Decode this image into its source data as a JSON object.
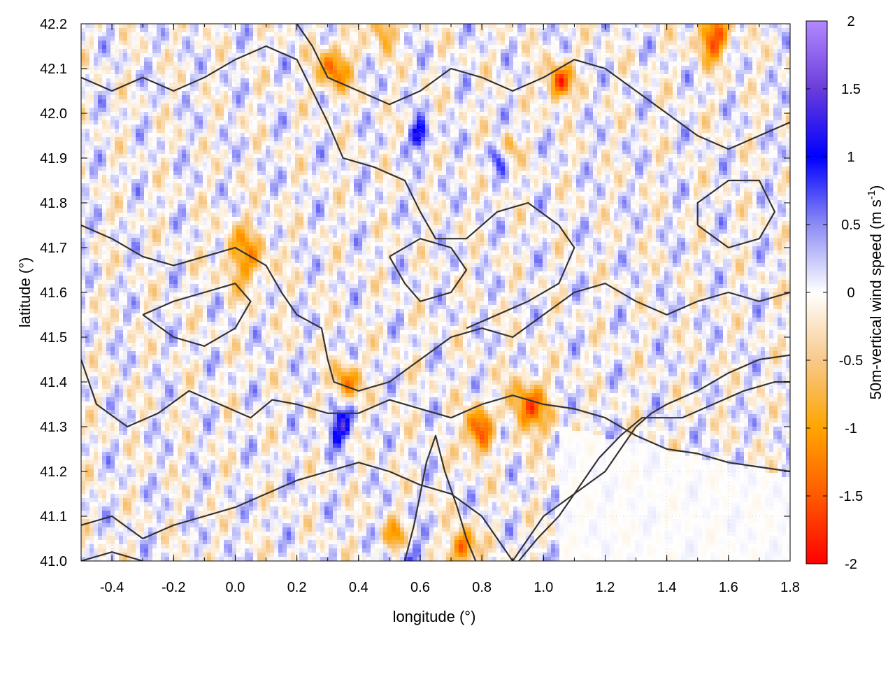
{
  "chart_data": {
    "type": "heatmap",
    "xlabel": "longitude (°)",
    "ylabel": "latitude (°)",
    "colorbar_label": "50m-vertical wind speed (m s",
    "colorbar_label_sup": "-1",
    "colorbar_label_close": ")",
    "xlim": [
      -0.5,
      1.8
    ],
    "ylim": [
      41.0,
      42.2
    ],
    "x_ticks": [
      -0.4,
      -0.2,
      0.0,
      0.2,
      0.4,
      0.6,
      0.8,
      1.0,
      1.2,
      1.4,
      1.6,
      1.8
    ],
    "x_tick_labels": [
      "-0.4",
      "-0.2",
      "0.0",
      "0.2",
      "0.4",
      "0.6",
      "0.8",
      "1.0",
      "1.2",
      "1.4",
      "1.6",
      "1.8"
    ],
    "y_ticks": [
      41.0,
      41.1,
      41.2,
      41.3,
      41.4,
      41.5,
      41.6,
      41.7,
      41.8,
      41.9,
      42.0,
      42.1,
      42.2
    ],
    "y_tick_labels": [
      "41.0",
      "41.1",
      "41.2",
      "41.3",
      "41.4",
      "41.5",
      "41.6",
      "41.7",
      "41.8",
      "41.9",
      "42.0",
      "42.1",
      "42.2"
    ],
    "colorbar_range": [
      -2,
      2
    ],
    "colorbar_ticks": [
      2,
      1.5,
      1,
      0.5,
      0,
      -0.5,
      -1,
      -1.5,
      -2
    ],
    "colorbar_tick_labels": [
      "2",
      "1.5",
      "1",
      "0.5",
      "0",
      "-0.5",
      "-1",
      "-1.5",
      "-2"
    ],
    "colormap": [
      {
        "value": 2.0,
        "color": "#b388ff"
      },
      {
        "value": 1.5,
        "color": "#6a3ddb"
      },
      {
        "value": 1.0,
        "color": "#0000ff"
      },
      {
        "value": 0.5,
        "color": "#8c8cf5"
      },
      {
        "value": 0.0,
        "color": "#ffffff"
      },
      {
        "value": -0.5,
        "color": "#f7c98a"
      },
      {
        "value": -1.0,
        "color": "#ffa500"
      },
      {
        "value": -1.5,
        "color": "#ff5a00"
      },
      {
        "value": -2.0,
        "color": "#ff0000"
      }
    ],
    "grid": true,
    "contour_color": "#333333",
    "contours": [
      [
        [
          -0.5,
          41.75
        ],
        [
          -0.4,
          41.72
        ],
        [
          -0.3,
          41.68
        ],
        [
          -0.2,
          41.66
        ],
        [
          -0.1,
          41.68
        ],
        [
          0.0,
          41.7
        ],
        [
          0.1,
          41.66
        ],
        [
          0.15,
          41.6
        ],
        [
          0.2,
          41.55
        ],
        [
          0.28,
          41.52
        ],
        [
          0.3,
          41.45
        ],
        [
          0.32,
          41.4
        ],
        [
          0.4,
          41.38
        ],
        [
          0.5,
          41.4
        ],
        [
          0.6,
          41.45
        ],
        [
          0.7,
          41.5
        ],
        [
          0.8,
          41.52
        ],
        [
          0.9,
          41.5
        ],
        [
          1.0,
          41.55
        ],
        [
          1.1,
          41.6
        ],
        [
          1.2,
          41.62
        ],
        [
          1.3,
          41.58
        ],
        [
          1.4,
          41.55
        ],
        [
          1.5,
          41.58
        ],
        [
          1.6,
          41.6
        ],
        [
          1.7,
          41.58
        ],
        [
          1.8,
          41.6
        ]
      ],
      [
        [
          -0.5,
          41.45
        ],
        [
          -0.45,
          41.35
        ],
        [
          -0.35,
          41.3
        ],
        [
          -0.25,
          41.33
        ],
        [
          -0.15,
          41.38
        ],
        [
          -0.05,
          41.35
        ],
        [
          0.05,
          41.32
        ],
        [
          0.12,
          41.36
        ],
        [
          0.2,
          41.35
        ],
        [
          0.3,
          41.33
        ],
        [
          0.4,
          41.33
        ],
        [
          0.5,
          41.36
        ],
        [
          0.6,
          41.34
        ],
        [
          0.7,
          41.32
        ],
        [
          0.8,
          41.35
        ],
        [
          0.9,
          41.37
        ],
        [
          1.0,
          41.35
        ],
        [
          1.1,
          41.34
        ],
        [
          1.2,
          41.32
        ],
        [
          1.3,
          41.28
        ],
        [
          1.4,
          41.25
        ],
        [
          1.5,
          41.24
        ],
        [
          1.6,
          41.22
        ],
        [
          1.7,
          41.21
        ],
        [
          1.8,
          41.2
        ]
      ],
      [
        [
          -0.5,
          41.08
        ],
        [
          -0.4,
          41.1
        ],
        [
          -0.3,
          41.05
        ],
        [
          -0.2,
          41.08
        ],
        [
          -0.1,
          41.1
        ],
        [
          0.0,
          41.12
        ],
        [
          0.1,
          41.15
        ],
        [
          0.2,
          41.18
        ],
        [
          0.3,
          41.2
        ],
        [
          0.4,
          41.22
        ],
        [
          0.5,
          41.2
        ],
        [
          0.6,
          41.17
        ],
        [
          0.7,
          41.15
        ],
        [
          0.8,
          41.1
        ],
        [
          0.85,
          41.05
        ],
        [
          0.9,
          41.0
        ]
      ],
      [
        [
          -0.5,
          41.0
        ],
        [
          -0.4,
          41.02
        ],
        [
          -0.3,
          41.0
        ]
      ],
      [
        [
          0.9,
          41.0
        ],
        [
          0.95,
          41.05
        ],
        [
          1.0,
          41.1
        ],
        [
          1.1,
          41.15
        ],
        [
          1.2,
          41.2
        ],
        [
          1.25,
          41.25
        ],
        [
          1.3,
          41.3
        ],
        [
          1.35,
          41.33
        ],
        [
          1.4,
          41.35
        ],
        [
          1.5,
          41.38
        ],
        [
          1.6,
          41.42
        ],
        [
          1.7,
          41.45
        ],
        [
          1.8,
          41.46
        ]
      ],
      [
        [
          0.92,
          41.0
        ],
        [
          0.98,
          41.05
        ],
        [
          1.05,
          41.1
        ],
        [
          1.12,
          41.17
        ],
        [
          1.18,
          41.23
        ],
        [
          1.25,
          41.28
        ],
        [
          1.32,
          41.32
        ],
        [
          1.45,
          41.32
        ],
        [
          1.55,
          41.35
        ],
        [
          1.65,
          41.38
        ],
        [
          1.75,
          41.4
        ],
        [
          1.8,
          41.4
        ]
      ],
      [
        [
          -0.5,
          42.08
        ],
        [
          -0.4,
          42.05
        ],
        [
          -0.3,
          42.08
        ],
        [
          -0.2,
          42.05
        ],
        [
          -0.1,
          42.08
        ],
        [
          0.0,
          42.12
        ],
        [
          0.1,
          42.15
        ],
        [
          0.2,
          42.12
        ],
        [
          0.25,
          42.05
        ],
        [
          0.3,
          41.98
        ],
        [
          0.35,
          41.9
        ],
        [
          0.45,
          41.88
        ],
        [
          0.55,
          41.85
        ],
        [
          0.6,
          41.78
        ],
        [
          0.65,
          41.72
        ],
        [
          0.75,
          41.72
        ],
        [
          0.85,
          41.78
        ],
        [
          0.95,
          41.8
        ],
        [
          1.05,
          41.75
        ],
        [
          1.1,
          41.7
        ],
        [
          1.05,
          41.62
        ],
        [
          0.95,
          41.58
        ],
        [
          0.85,
          41.55
        ],
        [
          0.75,
          41.52
        ]
      ],
      [
        [
          0.2,
          42.2
        ],
        [
          0.25,
          42.15
        ],
        [
          0.3,
          42.08
        ],
        [
          0.4,
          42.05
        ],
        [
          0.5,
          42.02
        ],
        [
          0.6,
          42.05
        ],
        [
          0.7,
          42.1
        ],
        [
          0.8,
          42.08
        ],
        [
          0.9,
          42.05
        ],
        [
          1.0,
          42.08
        ],
        [
          1.1,
          42.12
        ],
        [
          1.2,
          42.1
        ],
        [
          1.3,
          42.05
        ],
        [
          1.4,
          42.0
        ],
        [
          1.5,
          41.95
        ],
        [
          1.6,
          41.92
        ],
        [
          1.7,
          41.95
        ],
        [
          1.8,
          41.98
        ]
      ],
      [
        [
          -0.3,
          41.55
        ],
        [
          -0.2,
          41.5
        ],
        [
          -0.1,
          41.48
        ],
        [
          0.0,
          41.52
        ],
        [
          0.05,
          41.58
        ],
        [
          0.0,
          41.62
        ],
        [
          -0.1,
          41.6
        ],
        [
          -0.2,
          41.58
        ],
        [
          -0.3,
          41.55
        ]
      ],
      [
        [
          0.5,
          41.68
        ],
        [
          0.55,
          41.62
        ],
        [
          0.6,
          41.58
        ],
        [
          0.7,
          41.6
        ],
        [
          0.75,
          41.65
        ],
        [
          0.7,
          41.7
        ],
        [
          0.6,
          41.72
        ],
        [
          0.5,
          41.68
        ]
      ],
      [
        [
          1.5,
          41.75
        ],
        [
          1.6,
          41.7
        ],
        [
          1.7,
          41.72
        ],
        [
          1.75,
          41.78
        ],
        [
          1.7,
          41.85
        ],
        [
          1.6,
          41.85
        ],
        [
          1.5,
          41.8
        ],
        [
          1.5,
          41.75
        ]
      ],
      [
        [
          0.55,
          41.0
        ],
        [
          0.58,
          41.08
        ],
        [
          0.6,
          41.15
        ],
        [
          0.62,
          41.22
        ],
        [
          0.65,
          41.28
        ],
        [
          0.68,
          41.2
        ],
        [
          0.72,
          41.12
        ],
        [
          0.75,
          41.05
        ],
        [
          0.78,
          41.0
        ]
      ]
    ],
    "hotspots": [
      {
        "lon": 0.8,
        "lat": 41.29,
        "w": 0.05,
        "v": -1.9
      },
      {
        "lon": 0.95,
        "lat": 41.34,
        "w": 0.06,
        "v": -1.5
      },
      {
        "lon": 0.32,
        "lat": 42.1,
        "w": 0.05,
        "v": -1.4
      },
      {
        "lon": 0.47,
        "lat": 42.18,
        "w": 0.04,
        "v": -1.6
      },
      {
        "lon": 1.55,
        "lat": 42.17,
        "w": 0.05,
        "v": -1.6
      },
      {
        "lon": 1.05,
        "lat": 42.07,
        "w": 0.04,
        "v": -1.7
      },
      {
        "lon": 0.03,
        "lat": 41.68,
        "w": 0.07,
        "v": -1.0
      },
      {
        "lon": 0.36,
        "lat": 41.4,
        "w": 0.04,
        "v": -1.3
      },
      {
        "lon": 0.52,
        "lat": 41.05,
        "w": 0.04,
        "v": -1.3
      },
      {
        "lon": 0.74,
        "lat": 41.03,
        "w": 0.04,
        "v": -1.6
      },
      {
        "lon": 0.88,
        "lat": 41.92,
        "w": 0.03,
        "v": -1.3
      },
      {
        "lon": 0.85,
        "lat": 41.29,
        "w": 0.04,
        "v": 1.0
      },
      {
        "lon": 0.34,
        "lat": 41.3,
        "w": 0.04,
        "v": 1.2
      },
      {
        "lon": 0.6,
        "lat": 41.95,
        "w": 0.03,
        "v": 1.3
      },
      {
        "lon": 0.86,
        "lat": 41.91,
        "w": 0.03,
        "v": 1.2
      },
      {
        "lon": 0.45,
        "lat": 42.17,
        "w": 0.03,
        "v": 0.9
      },
      {
        "lon": 0.55,
        "lat": 41.02,
        "w": 0.05,
        "v": 0.7
      }
    ]
  }
}
